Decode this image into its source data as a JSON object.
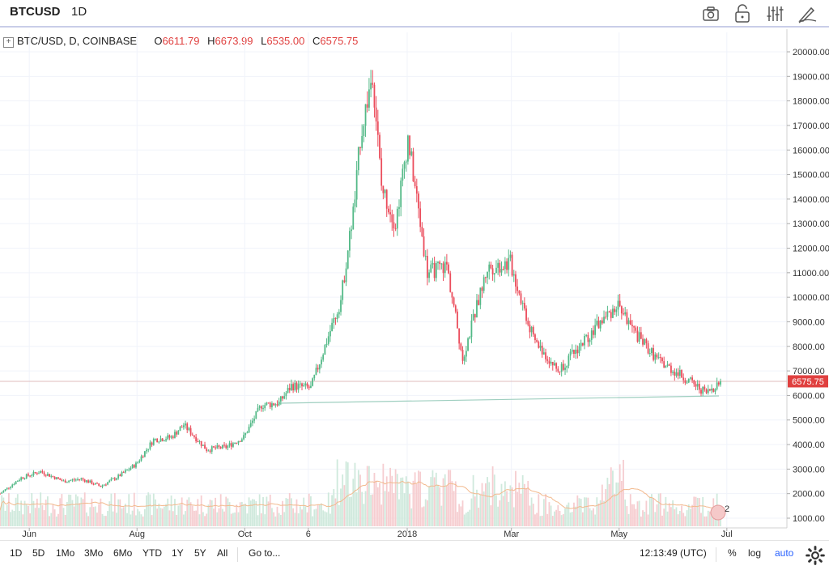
{
  "header": {
    "symbol": "BTCUSD",
    "timeframe": "1D",
    "icons": [
      "camera-icon",
      "lock-icon",
      "indicators-icon",
      "drawing-icon"
    ]
  },
  "legend": {
    "title": "BTC/USD, D, COINBASE",
    "o_label": "O",
    "o_value": "6611.79",
    "h_label": "H",
    "h_value": "6673.99",
    "l_label": "L",
    "l_value": "6535.00",
    "c_label": "C",
    "c_value": "6575.75"
  },
  "price_tag": "6575.75",
  "badge_count": "2",
  "bottom": {
    "ranges": [
      "1D",
      "5D",
      "1Mo",
      "3Mo",
      "6Mo",
      "YTD",
      "1Y",
      "5Y",
      "All"
    ],
    "goto": "Go to...",
    "time": "12:13:49 (UTC)",
    "pct": "%",
    "log": "log",
    "auto": "auto"
  },
  "colors": {
    "up": "#53b987",
    "down": "#eb4d5c",
    "line": "#9fcfc0",
    "ma": "#f2b98d"
  },
  "chart_data": {
    "type": "candlestick",
    "title": "BTC/USD, D, COINBASE",
    "x_ticks": [
      "Jun",
      "Aug",
      "Oct",
      "6",
      "2018",
      "Mar",
      "May",
      "Jul"
    ],
    "y_ticks": [
      1000,
      2000,
      3000,
      4000,
      5000,
      6000,
      7000,
      8000,
      9000,
      10000,
      11000,
      12000,
      13000,
      14000,
      15000,
      16000,
      17000,
      18000,
      19000,
      20000
    ],
    "ylim": [
      700,
      20500
    ],
    "last_price": 6575.75,
    "series": [
      {
        "name": "Close",
        "x": [
          "2017-05-20",
          "2017-06-01",
          "2017-06-12",
          "2017-06-25",
          "2017-07-05",
          "2017-07-16",
          "2017-07-26",
          "2017-08-05",
          "2017-08-15",
          "2017-08-25",
          "2017-09-01",
          "2017-09-14",
          "2017-09-25",
          "2017-10-05",
          "2017-10-15",
          "2017-10-25",
          "2017-11-01",
          "2017-11-12",
          "2017-11-20",
          "2017-11-29",
          "2017-12-07",
          "2017-12-10",
          "2017-12-17",
          "2017-12-22",
          "2017-12-30",
          "2018-01-06",
          "2018-01-17",
          "2018-01-28",
          "2018-02-06",
          "2018-02-20",
          "2018-03-05",
          "2018-03-18",
          "2018-04-01",
          "2018-04-12",
          "2018-04-25",
          "2018-05-05",
          "2018-05-15",
          "2018-05-28",
          "2018-06-10",
          "2018-06-24",
          "2018-07-02"
        ],
        "values": [
          2000,
          2650,
          2900,
          2500,
          2600,
          2300,
          2700,
          3200,
          4200,
          4300,
          4800,
          3800,
          3900,
          4300,
          5600,
          5700,
          6400,
          6300,
          8000,
          9900,
          14000,
          16500,
          19200,
          14500,
          13000,
          16500,
          11000,
          11300,
          7500,
          11200,
          11400,
          8300,
          7000,
          7900,
          9000,
          9700,
          8500,
          7400,
          6800,
          6100,
          6575.75
        ]
      }
    ],
    "volume_axis_label": "1000.00"
  }
}
